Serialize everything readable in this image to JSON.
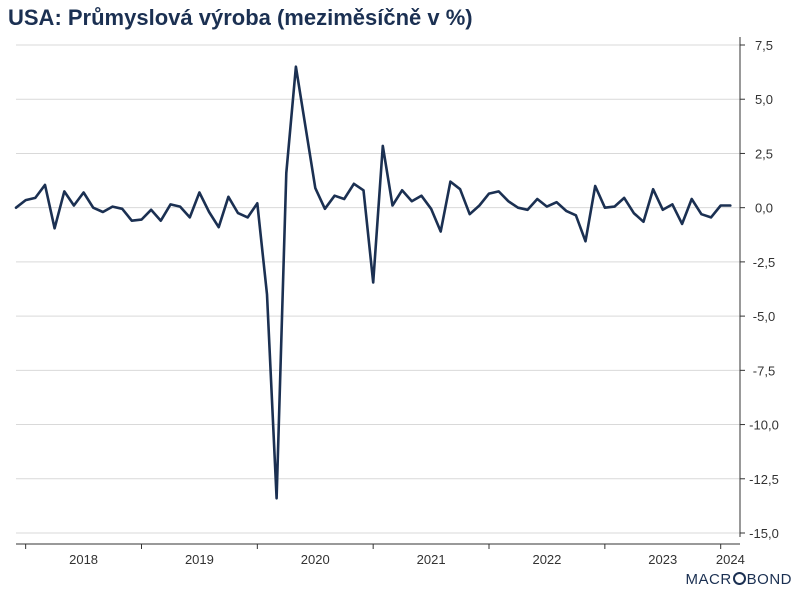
{
  "title": "USA: Průmyslová výroba (meziměsíčně v %)",
  "logo": {
    "text_before": "MACR",
    "text_after": "BOND"
  },
  "colors": {
    "line": "#1b3052",
    "grid": "#d9d9d9",
    "axis": "#333333",
    "text": "#333333"
  },
  "chart_data": {
    "type": "line",
    "title": "USA: Průmyslová výroba (meziměsíčně v %)",
    "xlabel": "",
    "ylabel": "",
    "x_ticks": [
      "2018",
      "2019",
      "2020",
      "2021",
      "2022",
      "2023",
      "2024"
    ],
    "y_ticks": [
      "7,5",
      "5,0",
      "2,5",
      "0,0",
      "-2,5",
      "-5,0",
      "-7,5",
      "-10,0",
      "-12,5",
      "-15,0"
    ],
    "ylim": [
      -15,
      7.5
    ],
    "xlim": [
      "2017-12",
      "2024-03"
    ],
    "grid": true,
    "y_axis_position": "right",
    "series": [
      {
        "x": [
          "2017-12",
          "2018-01",
          "2018-02",
          "2018-03",
          "2018-04",
          "2018-05",
          "2018-06",
          "2018-07",
          "2018-08",
          "2018-09",
          "2018-10",
          "2018-11",
          "2018-12",
          "2019-01",
          "2019-02",
          "2019-03",
          "2019-04",
          "2019-05",
          "2019-06",
          "2019-07",
          "2019-08",
          "2019-09",
          "2019-10",
          "2019-11",
          "2019-12",
          "2020-01",
          "2020-02",
          "2020-03",
          "2020-04",
          "2020-05",
          "2020-06",
          "2020-07",
          "2020-08",
          "2020-09",
          "2020-10",
          "2020-11",
          "2020-12",
          "2021-01",
          "2021-02",
          "2021-03",
          "2021-04",
          "2021-05",
          "2021-06",
          "2021-07",
          "2021-08",
          "2021-09",
          "2021-10",
          "2021-11",
          "2021-12",
          "2022-01",
          "2022-02",
          "2022-03",
          "2022-04",
          "2022-05",
          "2022-06",
          "2022-07",
          "2022-08",
          "2022-09",
          "2022-10",
          "2022-11",
          "2022-12",
          "2023-01",
          "2023-02",
          "2023-03",
          "2023-04",
          "2023-05",
          "2023-06",
          "2023-07",
          "2023-08",
          "2023-09",
          "2023-10",
          "2023-11",
          "2023-12",
          "2024-01",
          "2024-02"
        ],
        "values": [
          0.0,
          0.35,
          0.45,
          1.05,
          -0.95,
          0.75,
          0.1,
          0.7,
          0.0,
          -0.2,
          0.05,
          -0.05,
          -0.6,
          -0.55,
          -0.1,
          -0.6,
          0.15,
          0.05,
          -0.45,
          0.7,
          -0.2,
          -0.9,
          0.5,
          -0.25,
          -0.45,
          0.2,
          -4.0,
          -13.4,
          1.6,
          6.5,
          3.7,
          0.9,
          -0.05,
          0.55,
          0.4,
          1.1,
          0.8,
          -3.45,
          2.85,
          0.1,
          0.8,
          0.3,
          0.55,
          -0.05,
          -1.1,
          1.2,
          0.85,
          -0.3,
          0.1,
          0.65,
          0.75,
          0.3,
          0.0,
          -0.1,
          0.4,
          0.05,
          0.25,
          -0.15,
          -0.35,
          -1.55,
          1.0,
          0.0,
          0.05,
          0.45,
          -0.25,
          -0.65,
          0.85,
          -0.1,
          0.15,
          -0.75,
          0.4,
          -0.3,
          -0.45,
          0.1,
          0.1
        ]
      }
    ]
  }
}
